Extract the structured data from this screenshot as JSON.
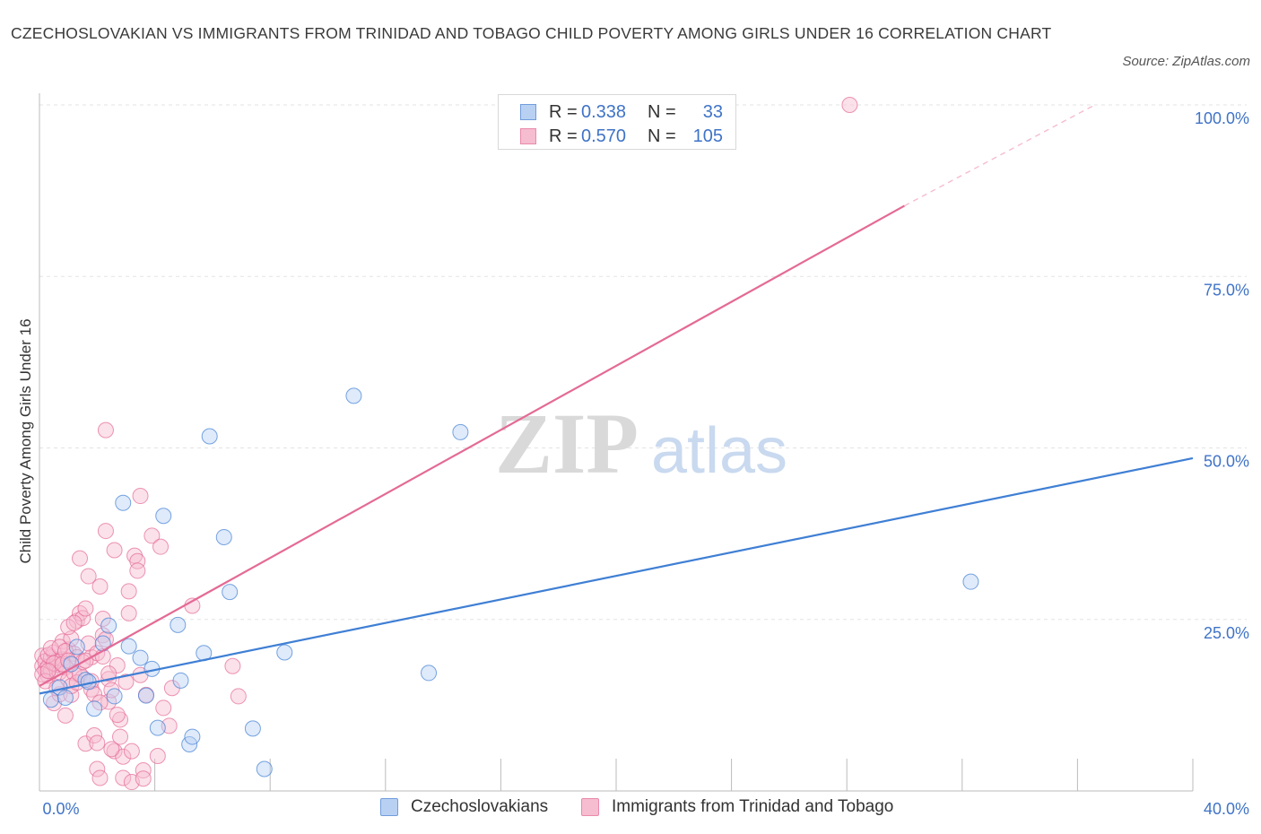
{
  "title": "CZECHOSLOVAKIAN VS IMMIGRANTS FROM TRINIDAD AND TOBAGO CHILD POVERTY AMONG GIRLS UNDER 16 CORRELATION CHART",
  "source": "Source: ZipAtlas.com",
  "watermark": {
    "zip": "ZIP",
    "atlas": "atlas"
  },
  "legend": {
    "rows": [
      {
        "r_label": "R =",
        "r_value": "0.338",
        "n_label": "N =",
        "n_value": "33"
      },
      {
        "r_label": "R =",
        "r_value": "0.570",
        "n_label": "N =",
        "n_value": "105"
      }
    ]
  },
  "chart_data": {
    "type": "scatter",
    "title": "CZECHOSLOVAKIAN VS IMMIGRANTS FROM TRINIDAD AND TOBAGO CHILD POVERTY AMONG GIRLS UNDER 16 CORRELATION CHART",
    "xlabel": "",
    "ylabel": "Child Poverty Among Girls Under 16",
    "xlim": [
      0,
      40
    ],
    "ylim": [
      0,
      100
    ],
    "x_tick_labels": [
      "0.0%",
      "40.0%"
    ],
    "y_tick_labels": [
      "25.0%",
      "50.0%",
      "75.0%",
      "100.0%"
    ],
    "y_ticks": [
      25,
      50,
      75,
      100
    ],
    "grid": true,
    "colors": {
      "blue": "#3f7fd4",
      "blue_fill": "#b8d1f3",
      "pink": "#e46a95",
      "pink_fill": "#f6bcd0",
      "axis_label": "#3f73c7"
    },
    "series": [
      {
        "name": "Czechoslovakians",
        "color": "#3f7fd4",
        "fill": "#b8d1f3",
        "points": [
          [
            0.4,
            13.3
          ],
          [
            0.7,
            15.1
          ],
          [
            0.9,
            13.6
          ],
          [
            1.1,
            18.5
          ],
          [
            1.3,
            21.0
          ],
          [
            1.6,
            16.2
          ],
          [
            1.7,
            15.9
          ],
          [
            1.9,
            12.0
          ],
          [
            2.2,
            21.5
          ],
          [
            2.4,
            24.1
          ],
          [
            2.6,
            13.8
          ],
          [
            2.9,
            42.0
          ],
          [
            3.1,
            21.1
          ],
          [
            3.5,
            19.4
          ],
          [
            3.7,
            13.9
          ],
          [
            3.9,
            17.8
          ],
          [
            4.1,
            9.2
          ],
          [
            4.3,
            40.1
          ],
          [
            4.8,
            24.2
          ],
          [
            4.9,
            16.1
          ],
          [
            5.2,
            6.8
          ],
          [
            5.3,
            7.9
          ],
          [
            5.7,
            20.1
          ],
          [
            5.9,
            51.7
          ],
          [
            6.4,
            37.0
          ],
          [
            6.6,
            29.0
          ],
          [
            7.4,
            9.1
          ],
          [
            7.8,
            3.2
          ],
          [
            8.5,
            20.2
          ],
          [
            10.9,
            57.6
          ],
          [
            13.5,
            17.2
          ],
          [
            14.6,
            52.3
          ],
          [
            32.3,
            30.5
          ]
        ],
        "trend": [
          [
            0,
            14.2
          ],
          [
            40,
            48.5
          ]
        ]
      },
      {
        "name": "Immigrants from Trinidad and Tobago",
        "color": "#e46a95",
        "fill": "#f6bcd0",
        "points": [
          [
            0.1,
            18.2
          ],
          [
            0.1,
            19.7
          ],
          [
            0.2,
            17.6
          ],
          [
            0.2,
            18.9
          ],
          [
            0.3,
            16.8
          ],
          [
            0.3,
            18.1
          ],
          [
            0.4,
            19.5
          ],
          [
            0.4,
            17.5
          ],
          [
            0.5,
            20.2
          ],
          [
            0.5,
            12.8
          ],
          [
            0.6,
            18.4
          ],
          [
            0.6,
            19.0
          ],
          [
            0.7,
            17.3
          ],
          [
            0.7,
            14.1
          ],
          [
            0.8,
            21.8
          ],
          [
            0.8,
            19.2
          ],
          [
            0.9,
            11.0
          ],
          [
            0.9,
            18.0
          ],
          [
            1.0,
            20.6
          ],
          [
            1.0,
            16.2
          ],
          [
            1.1,
            22.2
          ],
          [
            1.1,
            14.0
          ],
          [
            1.2,
            20.0
          ],
          [
            1.2,
            17.2
          ],
          [
            1.3,
            24.8
          ],
          [
            1.3,
            19.5
          ],
          [
            1.4,
            33.9
          ],
          [
            1.4,
            25.9
          ],
          [
            1.5,
            25.2
          ],
          [
            1.5,
            16.5
          ],
          [
            1.6,
            6.9
          ],
          [
            1.6,
            26.6
          ],
          [
            1.7,
            31.3
          ],
          [
            1.8,
            14.8
          ],
          [
            1.8,
            19.5
          ],
          [
            1.9,
            8.1
          ],
          [
            2.0,
            7.0
          ],
          [
            2.0,
            3.2
          ],
          [
            2.1,
            29.8
          ],
          [
            2.1,
            1.9
          ],
          [
            2.2,
            25.1
          ],
          [
            2.2,
            22.7
          ],
          [
            2.3,
            52.6
          ],
          [
            2.3,
            37.9
          ],
          [
            2.4,
            16.3
          ],
          [
            2.4,
            13.0
          ],
          [
            2.5,
            14.7
          ],
          [
            2.6,
            35.1
          ],
          [
            2.6,
            5.8
          ],
          [
            2.7,
            18.3
          ],
          [
            2.8,
            10.4
          ],
          [
            2.8,
            7.9
          ],
          [
            2.9,
            5.0
          ],
          [
            2.9,
            1.9
          ],
          [
            3.0,
            15.9
          ],
          [
            3.1,
            29.1
          ],
          [
            3.1,
            25.9
          ],
          [
            3.2,
            5.8
          ],
          [
            3.2,
            1.3
          ],
          [
            3.3,
            34.3
          ],
          [
            3.4,
            33.5
          ],
          [
            3.4,
            32.1
          ],
          [
            3.5,
            16.9
          ],
          [
            3.5,
            43.0
          ],
          [
            3.6,
            3.0
          ],
          [
            3.6,
            1.8
          ],
          [
            3.7,
            14.0
          ],
          [
            3.9,
            37.2
          ],
          [
            4.1,
            5.1
          ],
          [
            4.2,
            35.6
          ],
          [
            4.3,
            12.1
          ],
          [
            4.5,
            9.5
          ],
          [
            4.6,
            15.0
          ],
          [
            5.3,
            27.0
          ],
          [
            6.7,
            18.2
          ],
          [
            6.9,
            13.8
          ],
          [
            0.1,
            17.0
          ],
          [
            0.2,
            16.0
          ],
          [
            0.3,
            19.8
          ],
          [
            0.4,
            20.8
          ],
          [
            0.5,
            18.6
          ],
          [
            0.6,
            15.0
          ],
          [
            0.7,
            21.0
          ],
          [
            0.8,
            18.5
          ],
          [
            0.9,
            20.4
          ],
          [
            1.0,
            23.9
          ],
          [
            1.1,
            15.3
          ],
          [
            1.2,
            24.5
          ],
          [
            1.3,
            15.8
          ],
          [
            1.4,
            17.0
          ],
          [
            1.5,
            18.8
          ],
          [
            1.6,
            19.0
          ],
          [
            1.7,
            21.5
          ],
          [
            1.8,
            16.0
          ],
          [
            1.9,
            14.1
          ],
          [
            2.0,
            20.1
          ],
          [
            2.1,
            12.9
          ],
          [
            2.2,
            19.6
          ],
          [
            2.3,
            22.1
          ],
          [
            2.4,
            17.1
          ],
          [
            2.5,
            6.1
          ],
          [
            2.7,
            11.1
          ],
          [
            28.1,
            100.0
          ],
          [
            0.3,
            17.5
          ],
          [
            1.0,
            19.0
          ]
        ],
        "trend": [
          [
            0,
            15.3
          ],
          [
            30,
            85.3
          ]
        ],
        "trend_dashed": [
          [
            30,
            85.3
          ],
          [
            36.6,
            100.0
          ]
        ]
      }
    ]
  },
  "bottom_legend": {
    "items": [
      "Czechoslovakians",
      "Immigrants from Trinidad and Tobago"
    ]
  }
}
